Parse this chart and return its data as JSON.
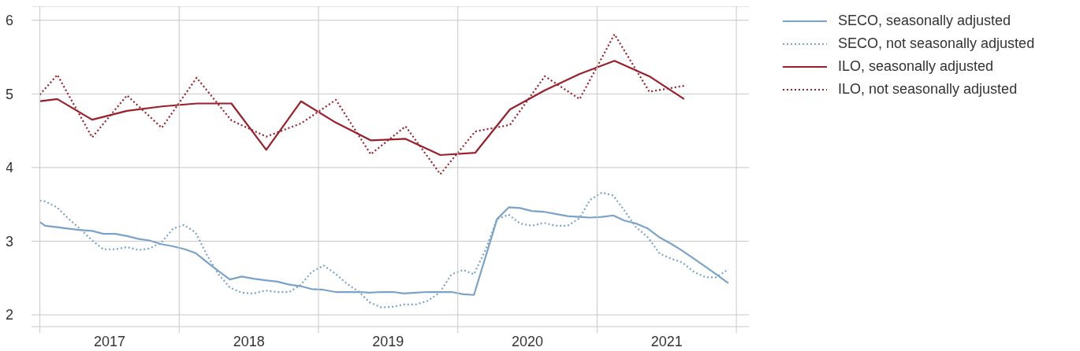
{
  "chart_data": {
    "type": "line",
    "xlim": [
      2016.94,
      2022.09
    ],
    "xticks": [
      {
        "value": 2017,
        "label": null
      },
      {
        "value": 2017.5,
        "label": "2017"
      },
      {
        "value": 2018,
        "label": null
      },
      {
        "value": 2018.5,
        "label": "2018"
      },
      {
        "value": 2019,
        "label": null
      },
      {
        "value": 2019.5,
        "label": "2019"
      },
      {
        "value": 2020,
        "label": null
      },
      {
        "value": 2020.5,
        "label": "2020"
      },
      {
        "value": 2021,
        "label": null
      },
      {
        "value": 2021.5,
        "label": "2021"
      },
      {
        "value": 2022,
        "label": null
      }
    ],
    "ylim": [
      1.84,
      6.19
    ],
    "yticks": [
      2,
      3,
      4,
      5,
      6
    ],
    "grid": true,
    "legend": "right",
    "series": [
      {
        "name": "SECO, seasonally adjusted",
        "color": "#7ba3c9",
        "line_style": "solid",
        "x": [
          2017.0,
          2017.038,
          2017.123,
          2017.208,
          2017.294,
          2017.375,
          2017.455,
          2017.54,
          2017.625,
          2017.71,
          2017.786,
          2017.871,
          2017.956,
          2018.042,
          2018.117,
          2018.203,
          2018.278,
          2018.364,
          2018.449,
          2018.534,
          2018.619,
          2018.705,
          2018.79,
          2018.869,
          2018.951,
          2019.036,
          2019.121,
          2019.206,
          2019.292,
          2019.367,
          2019.453,
          2019.538,
          2019.614,
          2019.699,
          2019.784,
          2019.869,
          2019.955,
          2020.04,
          2020.116,
          2020.282,
          2020.366,
          2020.447,
          2020.532,
          2020.617,
          2020.703,
          2020.788,
          2020.873,
          2020.949,
          2021.034,
          2021.116,
          2021.195,
          2021.28,
          2021.366,
          2021.45,
          2021.536,
          2021.612,
          2021.697,
          2021.78,
          2021.856,
          2021.943
        ],
        "values": [
          3.26,
          3.21,
          3.19,
          3.17,
          3.15,
          3.14,
          3.1,
          3.1,
          3.07,
          3.03,
          3.01,
          2.96,
          2.93,
          2.89,
          2.84,
          2.71,
          2.6,
          2.48,
          2.52,
          2.49,
          2.47,
          2.45,
          2.41,
          2.39,
          2.35,
          2.34,
          2.31,
          2.31,
          2.31,
          2.3,
          2.31,
          2.31,
          2.29,
          2.3,
          2.31,
          2.31,
          2.31,
          2.28,
          2.27,
          3.3,
          3.46,
          3.45,
          3.41,
          3.4,
          3.37,
          3.34,
          3.33,
          3.32,
          3.33,
          3.35,
          3.28,
          3.24,
          3.17,
          3.05,
          2.96,
          2.87,
          2.76,
          2.65,
          2.55,
          2.43
        ]
      },
      {
        "name": "SECO, not seasonally adjusted",
        "color": "#7ba3c9",
        "line_style": "dotted",
        "x": [
          2017.0,
          2017.038,
          2017.123,
          2017.208,
          2017.294,
          2017.375,
          2017.455,
          2017.54,
          2017.625,
          2017.71,
          2017.786,
          2017.871,
          2017.956,
          2018.034,
          2018.117,
          2018.203,
          2018.278,
          2018.364,
          2018.449,
          2018.534,
          2018.619,
          2018.705,
          2018.79,
          2018.869,
          2018.951,
          2019.036,
          2019.121,
          2019.206,
          2019.292,
          2019.367,
          2019.453,
          2019.538,
          2019.614,
          2019.699,
          2019.784,
          2019.869,
          2019.955,
          2020.04,
          2020.116,
          2020.201,
          2020.282,
          2020.366,
          2020.447,
          2020.532,
          2020.617,
          2020.703,
          2020.788,
          2020.873,
          2020.949,
          2021.034,
          2021.116,
          2021.195,
          2021.28,
          2021.366,
          2021.45,
          2021.536,
          2021.612,
          2021.697,
          2021.78,
          2021.856,
          2021.943
        ],
        "values": [
          3.55,
          3.54,
          3.46,
          3.3,
          3.16,
          3.01,
          2.89,
          2.89,
          2.92,
          2.88,
          2.9,
          2.98,
          3.17,
          3.22,
          3.12,
          2.8,
          2.56,
          2.37,
          2.3,
          2.29,
          2.33,
          2.31,
          2.31,
          2.4,
          2.58,
          2.67,
          2.56,
          2.42,
          2.31,
          2.17,
          2.1,
          2.11,
          2.14,
          2.14,
          2.19,
          2.3,
          2.55,
          2.61,
          2.55,
          2.89,
          3.3,
          3.36,
          3.24,
          3.21,
          3.25,
          3.21,
          3.21,
          3.31,
          3.56,
          3.66,
          3.62,
          3.42,
          3.19,
          3.05,
          2.83,
          2.76,
          2.71,
          2.58,
          2.51,
          2.51,
          2.62
        ]
      },
      {
        "name": "ILO, seasonally adjusted",
        "color": "#9a1f2a",
        "line_style": "solid",
        "x": [
          2017.0,
          2017.125,
          2017.375,
          2017.625,
          2017.875,
          2018.125,
          2018.375,
          2018.625,
          2018.875,
          2019.125,
          2019.375,
          2019.625,
          2019.875,
          2020.125,
          2020.375,
          2020.625,
          2020.875,
          2021.125,
          2021.375,
          2021.625
        ],
        "values": [
          4.9,
          4.93,
          4.65,
          4.77,
          4.83,
          4.87,
          4.87,
          4.24,
          4.9,
          4.61,
          4.37,
          4.39,
          4.17,
          4.2,
          4.79,
          5.05,
          5.27,
          5.45,
          5.24,
          4.93
        ]
      },
      {
        "name": "ILO, not seasonally adjusted",
        "color": "#9a1f2a",
        "line_style": "dotted",
        "x": [
          2017.0,
          2017.125,
          2017.375,
          2017.625,
          2017.875,
          2018.125,
          2018.375,
          2018.625,
          2018.875,
          2019.125,
          2019.375,
          2019.625,
          2019.875,
          2020.125,
          2020.375,
          2020.625,
          2020.875,
          2021.125,
          2021.375,
          2021.625
        ],
        "values": [
          4.99,
          5.26,
          4.41,
          4.98,
          4.54,
          5.22,
          4.64,
          4.42,
          4.6,
          4.92,
          4.18,
          4.56,
          3.91,
          4.49,
          4.58,
          5.24,
          4.93,
          5.81,
          5.03,
          5.11
        ]
      }
    ]
  }
}
